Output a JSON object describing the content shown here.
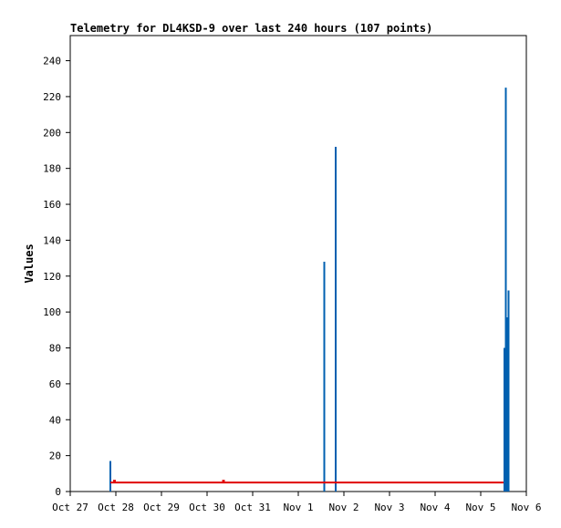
{
  "chart_data": {
    "type": "bar",
    "title": "Telemetry for DL4KSD-9 over last 240 hours (107 points)",
    "xlabel": "",
    "ylabel": "Values",
    "ylim": [
      0,
      254
    ],
    "yticks": [
      0,
      20,
      40,
      60,
      80,
      100,
      120,
      140,
      160,
      180,
      200,
      220,
      240
    ],
    "xticks": [
      "Oct 27",
      "Oct 28",
      "Oct 29",
      "Oct 30",
      "Oct 31",
      "Nov 1",
      "Nov 2",
      "Nov 3",
      "Nov 4",
      "Nov 5",
      "Nov 6"
    ],
    "xrange_days": [
      0,
      10
    ],
    "grid": false,
    "colors": {
      "series_a": "#0060b0",
      "series_b": "#e00000"
    },
    "series": [
      {
        "style": "bars",
        "color": "#0060b0",
        "points": [
          {
            "x": 0.88,
            "y": 17
          },
          {
            "x": 5.57,
            "y": 128
          },
          {
            "x": 5.82,
            "y": 192
          },
          {
            "x": 9.52,
            "y": 80
          },
          {
            "x": 9.55,
            "y": 225
          },
          {
            "x": 9.58,
            "y": 97
          },
          {
            "x": 9.61,
            "y": 112
          }
        ]
      },
      {
        "style": "line",
        "color": "#e00000",
        "points": [
          {
            "x": 0.88,
            "y": 5
          },
          {
            "x": 9.5,
            "y": 5
          }
        ]
      },
      {
        "style": "markers",
        "color": "#e00000",
        "points": [
          {
            "x": 0.97,
            "y": 6
          },
          {
            "x": 3.36,
            "y": 6
          }
        ]
      }
    ]
  }
}
